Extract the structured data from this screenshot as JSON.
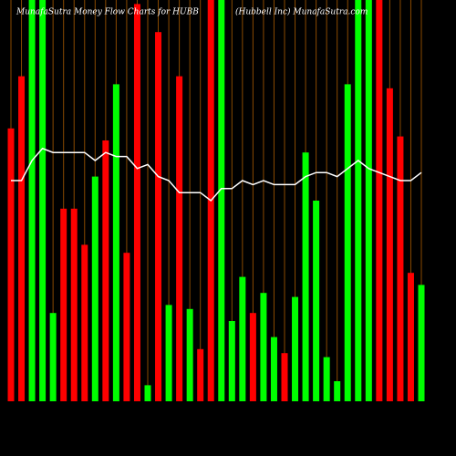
{
  "chart_data": {
    "type": "bar",
    "title": "MunafaSutra  Money Flow  Charts for HUBB",
    "subtitle": "(Hubbell Inc) MunafaSutra.com",
    "values": [
      68,
      81,
      100,
      100,
      22,
      48,
      48,
      39,
      56,
      65,
      79,
      37,
      99,
      4,
      92,
      24,
      81,
      23,
      13,
      100,
      100,
      20,
      31,
      22,
      27,
      16,
      12,
      26,
      62,
      50,
      11,
      5,
      79,
      100,
      100,
      100,
      78,
      66,
      32,
      29
    ],
    "bar_colors": [
      "#ff0000",
      "#ff0000",
      "#00ff00",
      "#00ff00",
      "#00ff00",
      "#ff0000",
      "#ff0000",
      "#ff0000",
      "#00ff00",
      "#ff0000",
      "#00ff00",
      "#ff0000",
      "#ff0000",
      "#00ff00",
      "#ff0000",
      "#00ff00",
      "#ff0000",
      "#00ff00",
      "#ff0000",
      "#ff0000",
      "#00ff00",
      "#00ff00",
      "#00ff00",
      "#ff0000",
      "#00ff00",
      "#00ff00",
      "#ff0000",
      "#00ff00",
      "#00ff00",
      "#00ff00",
      "#00ff00",
      "#00ff00",
      "#00ff00",
      "#00ff00",
      "#00ff00",
      "#ff0000",
      "#ff0000",
      "#ff0000",
      "#ff0000",
      "#00ff00"
    ],
    "line": {
      "color": "#ffffff",
      "values": [
        55,
        55,
        60,
        63,
        62,
        62,
        62,
        62,
        60,
        62,
        61,
        61,
        58,
        59,
        56,
        55,
        52,
        52,
        52,
        50,
        53,
        53,
        55,
        54,
        55,
        54,
        54,
        54,
        56,
        57,
        57,
        56,
        58,
        60,
        58,
        57,
        56,
        55,
        55,
        57
      ]
    },
    "grid_color": "#8a4a00",
    "ylim": [
      0,
      100
    ]
  }
}
